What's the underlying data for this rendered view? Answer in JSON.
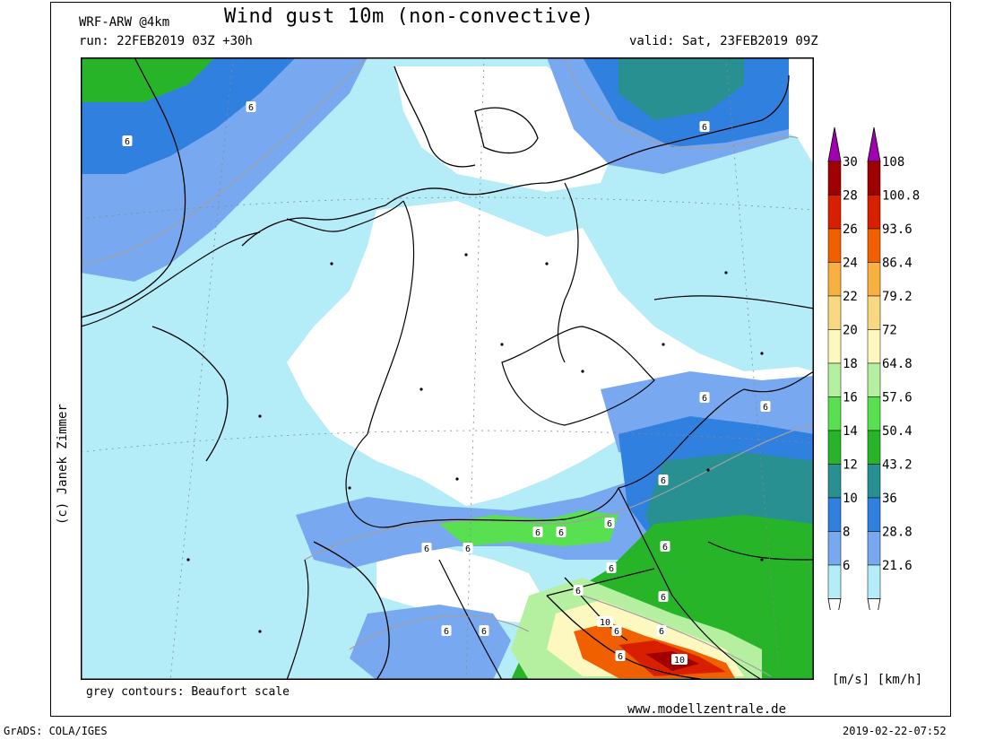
{
  "header": {
    "model": "WRF-ARW @4km",
    "title": "Wind gust 10m (non-convective)",
    "run": "run: 22FEB2019 03Z +30h",
    "valid": "valid: Sat, 23FEB2019 09Z"
  },
  "footer": {
    "contours_note": "grey contours: Beaufort scale",
    "website": "www.modellzentrale.de",
    "software": "GrADS: COLA/IGES",
    "timestamp": "2019-02-22-07:52",
    "credit": "(c) Janek Zimmer"
  },
  "legend": {
    "units": "[m/s] [km/h]",
    "ms_ticks": [
      "30",
      "28",
      "26",
      "24",
      "22",
      "20",
      "18",
      "16",
      "14",
      "12",
      "10",
      "8",
      "6"
    ],
    "kmh_ticks": [
      "108",
      "100.8",
      "93.6",
      "86.4",
      "79.2",
      "72",
      "64.8",
      "57.6",
      "50.4",
      "43.2",
      "36",
      "28.8",
      "21.6"
    ],
    "colors": [
      "#a00000",
      "#d82000",
      "#f06000",
      "#f8b040",
      "#f8d880",
      "#fcf8c0",
      "#b4f0a0",
      "#58e050",
      "#28b428",
      "#289090",
      "#3080e0",
      "#78a8f0",
      "#b4ecf8"
    ],
    "above_color": "#a000b0",
    "below_color": "#ffffff"
  },
  "map": {
    "region": "Central Europe",
    "beaufort_labels": [
      "6",
      "6",
      "6",
      "6",
      "6",
      "6",
      "6",
      "6",
      "6",
      "6",
      "6",
      "6",
      "6",
      "6",
      "6",
      "6",
      "6",
      "6",
      "6",
      "6",
      "10",
      "10"
    ],
    "colors": {
      "white": "#ffffff",
      "light_cyan": "#b4ecf8",
      "light_blue": "#78a8f0",
      "blue": "#3080e0",
      "teal": "#289090",
      "green": "#28b428",
      "light_green": "#58e050",
      "pale_green": "#b4f0a0",
      "yellow": "#fcf8c0",
      "orange": "#f06000",
      "red": "#d82000",
      "dark_red": "#a00000",
      "border": "#000000",
      "contour": "#a0a0a0"
    }
  }
}
